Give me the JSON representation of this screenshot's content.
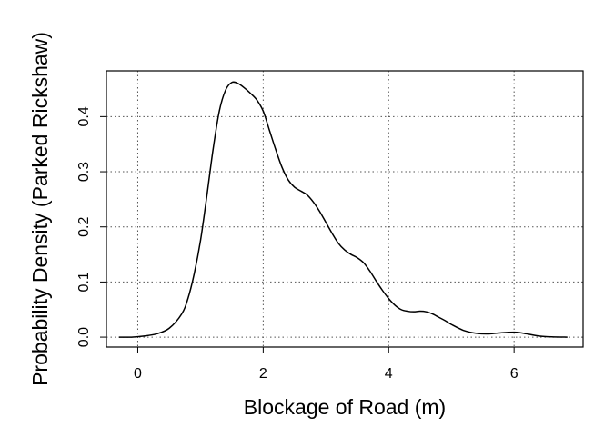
{
  "chart_data": {
    "type": "line",
    "title": "",
    "xlabel": "Blockage of Road (m)",
    "ylabel": "Probability Density (Parked Rickshaw)",
    "xlim": [
      -0.5,
      7.1
    ],
    "ylim": [
      -0.018,
      0.483
    ],
    "x_ticks": [
      0,
      2,
      4,
      6
    ],
    "x_tick_labels": [
      "0",
      "2",
      "4",
      "6"
    ],
    "y_ticks": [
      0.0,
      0.1,
      0.2,
      0.3,
      0.4
    ],
    "y_tick_labels": [
      "0.0",
      "0.1",
      "0.2",
      "0.3",
      "0.4"
    ],
    "grid": true,
    "legend": "none",
    "series": [
      {
        "x": [
          -0.3,
          -0.1,
          0.1,
          0.3,
          0.5,
          0.7,
          0.8,
          0.9,
          1.0,
          1.1,
          1.2,
          1.3,
          1.4,
          1.5,
          1.6,
          1.7,
          1.8,
          1.9,
          2.0,
          2.1,
          2.2,
          2.3,
          2.4,
          2.5,
          2.6,
          2.7,
          2.8,
          2.9,
          3.0,
          3.1,
          3.2,
          3.3,
          3.4,
          3.5,
          3.6,
          3.7,
          3.8,
          3.9,
          4.0,
          4.1,
          4.2,
          4.3,
          4.4,
          4.5,
          4.6,
          4.7,
          4.8,
          4.9,
          5.0,
          5.2,
          5.4,
          5.6,
          5.8,
          6.0,
          6.1,
          6.2,
          6.4,
          6.6,
          6.85
        ],
        "y": [
          0.0,
          0.0,
          0.002,
          0.006,
          0.016,
          0.042,
          0.07,
          0.115,
          0.175,
          0.255,
          0.34,
          0.41,
          0.448,
          0.462,
          0.46,
          0.452,
          0.442,
          0.43,
          0.41,
          0.375,
          0.34,
          0.308,
          0.285,
          0.272,
          0.265,
          0.258,
          0.245,
          0.228,
          0.208,
          0.188,
          0.17,
          0.158,
          0.15,
          0.144,
          0.135,
          0.12,
          0.102,
          0.085,
          0.07,
          0.058,
          0.05,
          0.047,
          0.046,
          0.047,
          0.046,
          0.042,
          0.036,
          0.03,
          0.023,
          0.012,
          0.007,
          0.006,
          0.008,
          0.009,
          0.008,
          0.006,
          0.002,
          0.0005,
          0.0
        ]
      }
    ]
  }
}
